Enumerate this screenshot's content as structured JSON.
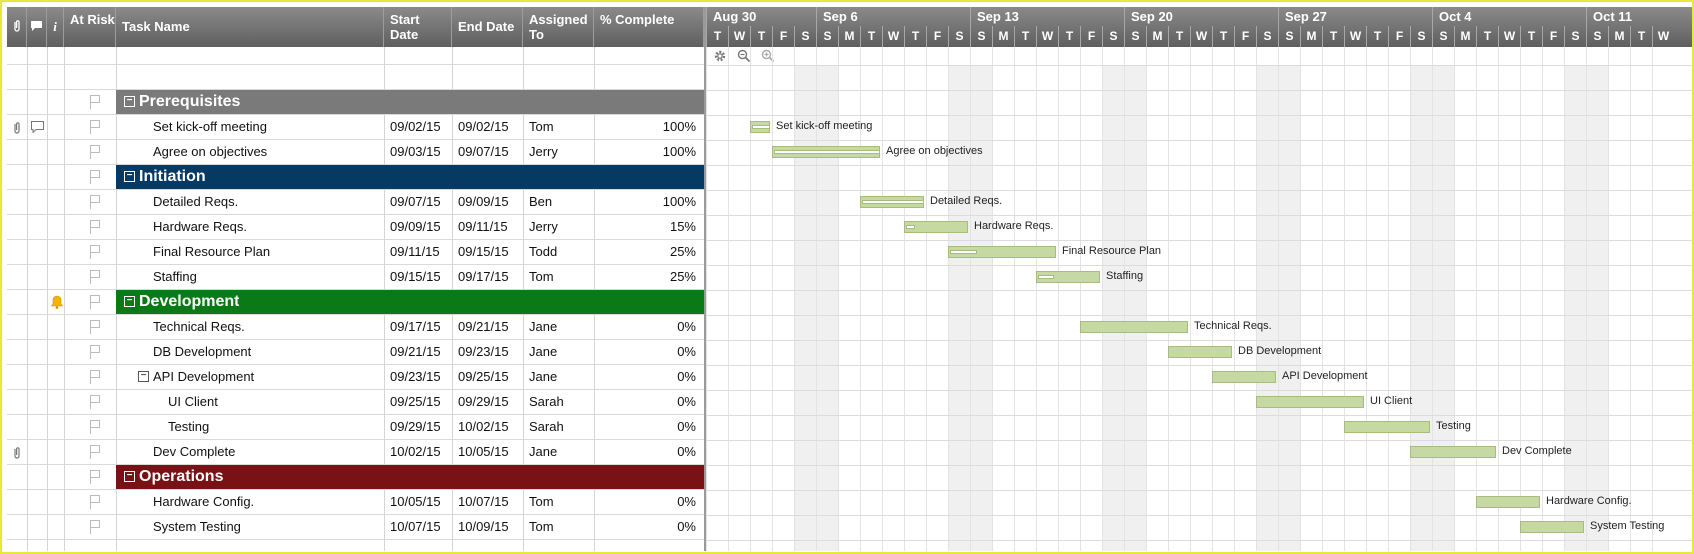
{
  "columns": {
    "at_risk": "At Risk",
    "task_name": "Task Name",
    "start_date": "Start Date",
    "end_date": "End Date",
    "assigned_to": "Assigned To",
    "pct_complete": "% Complete"
  },
  "groups": [
    {
      "name": "Prerequisites",
      "color": "#7a7a7a"
    },
    {
      "name": "Initiation",
      "color": "#073a63"
    },
    {
      "name": "Development",
      "color": "#0a7a16"
    },
    {
      "name": "Operations",
      "color": "#781214"
    }
  ],
  "tasks": [
    {
      "name": "Set kick-off meeting",
      "start": "09/02/15",
      "end": "09/02/15",
      "assigned": "Tom",
      "pct": "100%",
      "progress": 1.0
    },
    {
      "name": "Agree on objectives",
      "start": "09/03/15",
      "end": "09/07/15",
      "assigned": "Jerry",
      "pct": "100%",
      "progress": 1.0
    },
    {
      "name": "Detailed Reqs.",
      "start": "09/07/15",
      "end": "09/09/15",
      "assigned": "Ben",
      "pct": "100%",
      "progress": 1.0
    },
    {
      "name": "Hardware Reqs.",
      "start": "09/09/15",
      "end": "09/11/15",
      "assigned": "Jerry",
      "pct": "15%",
      "progress": 0.15
    },
    {
      "name": "Final Resource Plan",
      "start": "09/11/15",
      "end": "09/15/15",
      "assigned": "Todd",
      "pct": "25%",
      "progress": 0.25
    },
    {
      "name": "Staffing",
      "start": "09/15/15",
      "end": "09/17/15",
      "assigned": "Tom",
      "pct": "25%",
      "progress": 0.25
    },
    {
      "name": "Technical Reqs.",
      "start": "09/17/15",
      "end": "09/21/15",
      "assigned": "Jane",
      "pct": "0%",
      "progress": 0
    },
    {
      "name": "DB Development",
      "start": "09/21/15",
      "end": "09/23/15",
      "assigned": "Jane",
      "pct": "0%",
      "progress": 0
    },
    {
      "name": "API Development",
      "start": "09/23/15",
      "end": "09/25/15",
      "assigned": "Jane",
      "pct": "0%",
      "progress": 0
    },
    {
      "name": "UI Client",
      "start": "09/25/15",
      "end": "09/29/15",
      "assigned": "Sarah",
      "pct": "0%",
      "progress": 0
    },
    {
      "name": "Testing",
      "start": "09/29/15",
      "end": "10/02/15",
      "assigned": "Sarah",
      "pct": "0%",
      "progress": 0
    },
    {
      "name": "Dev Complete",
      "start": "10/02/15",
      "end": "10/05/15",
      "assigned": "Jane",
      "pct": "0%",
      "progress": 0
    },
    {
      "name": "Hardware Config.",
      "start": "10/05/15",
      "end": "10/07/15",
      "assigned": "Tom",
      "pct": "0%",
      "progress": 0
    },
    {
      "name": "System Testing",
      "start": "10/07/15",
      "end": "10/09/15",
      "assigned": "Tom",
      "pct": "0%",
      "progress": 0
    }
  ],
  "timeline": {
    "months": [
      "Aug 30",
      "Sep 6",
      "Sep 13",
      "Sep 20",
      "Sep 27",
      "Oct 4",
      "Oct 11"
    ],
    "days": [
      "T",
      "W",
      "T",
      "F",
      "S",
      "S",
      "M",
      "T",
      "W",
      "T",
      "F",
      "S",
      "S",
      "M",
      "T",
      "W",
      "T",
      "F",
      "S",
      "S",
      "M",
      "T",
      "W",
      "T",
      "F",
      "S",
      "S",
      "M",
      "T",
      "W",
      "T",
      "F",
      "S",
      "S",
      "M",
      "T",
      "W",
      "T",
      "F",
      "S",
      "S",
      "M",
      "T",
      "W"
    ]
  },
  "bar_color": "#c7d9a3"
}
